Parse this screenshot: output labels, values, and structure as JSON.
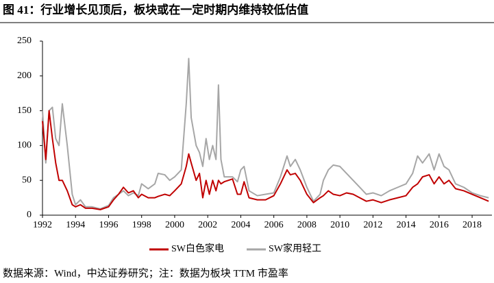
{
  "chart_data": {
    "type": "line",
    "title": "图 41：行业增长见顶后，板块或在一定时期内维持较低估值",
    "source": "数据来源：Wind，中达证券研究；注：数据为板块 TTM 市盈率",
    "x": [
      1992.0,
      1992.2,
      1992.4,
      1992.6,
      1992.8,
      1993.0,
      1993.2,
      1993.5,
      1993.8,
      1994.0,
      1994.3,
      1994.6,
      1995.0,
      1995.5,
      1996.0,
      1996.3,
      1996.6,
      1996.9,
      1997.2,
      1997.5,
      1997.8,
      1998.0,
      1998.4,
      1998.8,
      1999.0,
      1999.4,
      1999.7,
      2000.0,
      2000.4,
      2000.7,
      2000.85,
      2001.0,
      2001.3,
      2001.5,
      2001.7,
      2001.9,
      2002.1,
      2002.3,
      2002.5,
      2002.65,
      2002.8,
      2003.0,
      2003.5,
      2003.8,
      2004.0,
      2004.2,
      2004.5,
      2005.0,
      2005.5,
      2006.0,
      2006.4,
      2006.8,
      2007.0,
      2007.3,
      2007.6,
      2008.0,
      2008.4,
      2008.8,
      2009.0,
      2009.3,
      2009.6,
      2010.0,
      2010.4,
      2010.8,
      2011.2,
      2011.6,
      2012.0,
      2012.5,
      2013.0,
      2013.5,
      2014.0,
      2014.4,
      2014.7,
      2015.0,
      2015.4,
      2015.7,
      2016.0,
      2016.3,
      2016.6,
      2017.0,
      2017.5,
      2018.0,
      2018.5,
      2019.0
    ],
    "series": [
      {
        "name": "SW白色家电",
        "color": "#c00000",
        "values": [
          135,
          80,
          150,
          110,
          75,
          50,
          50,
          35,
          15,
          12,
          15,
          10,
          10,
          8,
          12,
          22,
          30,
          40,
          32,
          35,
          25,
          30,
          25,
          25,
          27,
          30,
          28,
          35,
          45,
          70,
          88,
          75,
          50,
          60,
          25,
          50,
          30,
          50,
          35,
          50,
          45,
          48,
          52,
          30,
          30,
          48,
          25,
          22,
          22,
          28,
          45,
          65,
          58,
          60,
          50,
          30,
          18,
          25,
          28,
          35,
          30,
          28,
          32,
          30,
          25,
          20,
          22,
          18,
          22,
          25,
          28,
          40,
          45,
          55,
          58,
          45,
          55,
          45,
          50,
          38,
          35,
          30,
          25,
          20
        ]
      },
      {
        "name": "SW家用轻工",
        "color": "#a6a6a6",
        "values": [
          150,
          75,
          150,
          155,
          110,
          100,
          160,
          100,
          30,
          15,
          22,
          12,
          12,
          9,
          14,
          25,
          30,
          35,
          28,
          32,
          28,
          45,
          38,
          45,
          60,
          58,
          50,
          55,
          65,
          160,
          225,
          140,
          100,
          90,
          70,
          110,
          80,
          100,
          80,
          187,
          80,
          55,
          55,
          48,
          65,
          70,
          35,
          28,
          30,
          32,
          55,
          85,
          70,
          80,
          65,
          40,
          20,
          30,
          50,
          65,
          72,
          70,
          60,
          50,
          40,
          30,
          32,
          28,
          35,
          40,
          45,
          60,
          85,
          75,
          88,
          65,
          88,
          70,
          65,
          45,
          40,
          32,
          28,
          25
        ]
      }
    ],
    "xlim": [
      1992,
      2019.2
    ],
    "xticks": [
      1992,
      1994,
      1996,
      1998,
      2000,
      2002,
      2004,
      2006,
      2008,
      2010,
      2012,
      2014,
      2016,
      2018
    ],
    "ylim": [
      0,
      250
    ],
    "yticks": [
      0,
      50,
      100,
      150,
      200,
      250
    ],
    "grid": false
  }
}
